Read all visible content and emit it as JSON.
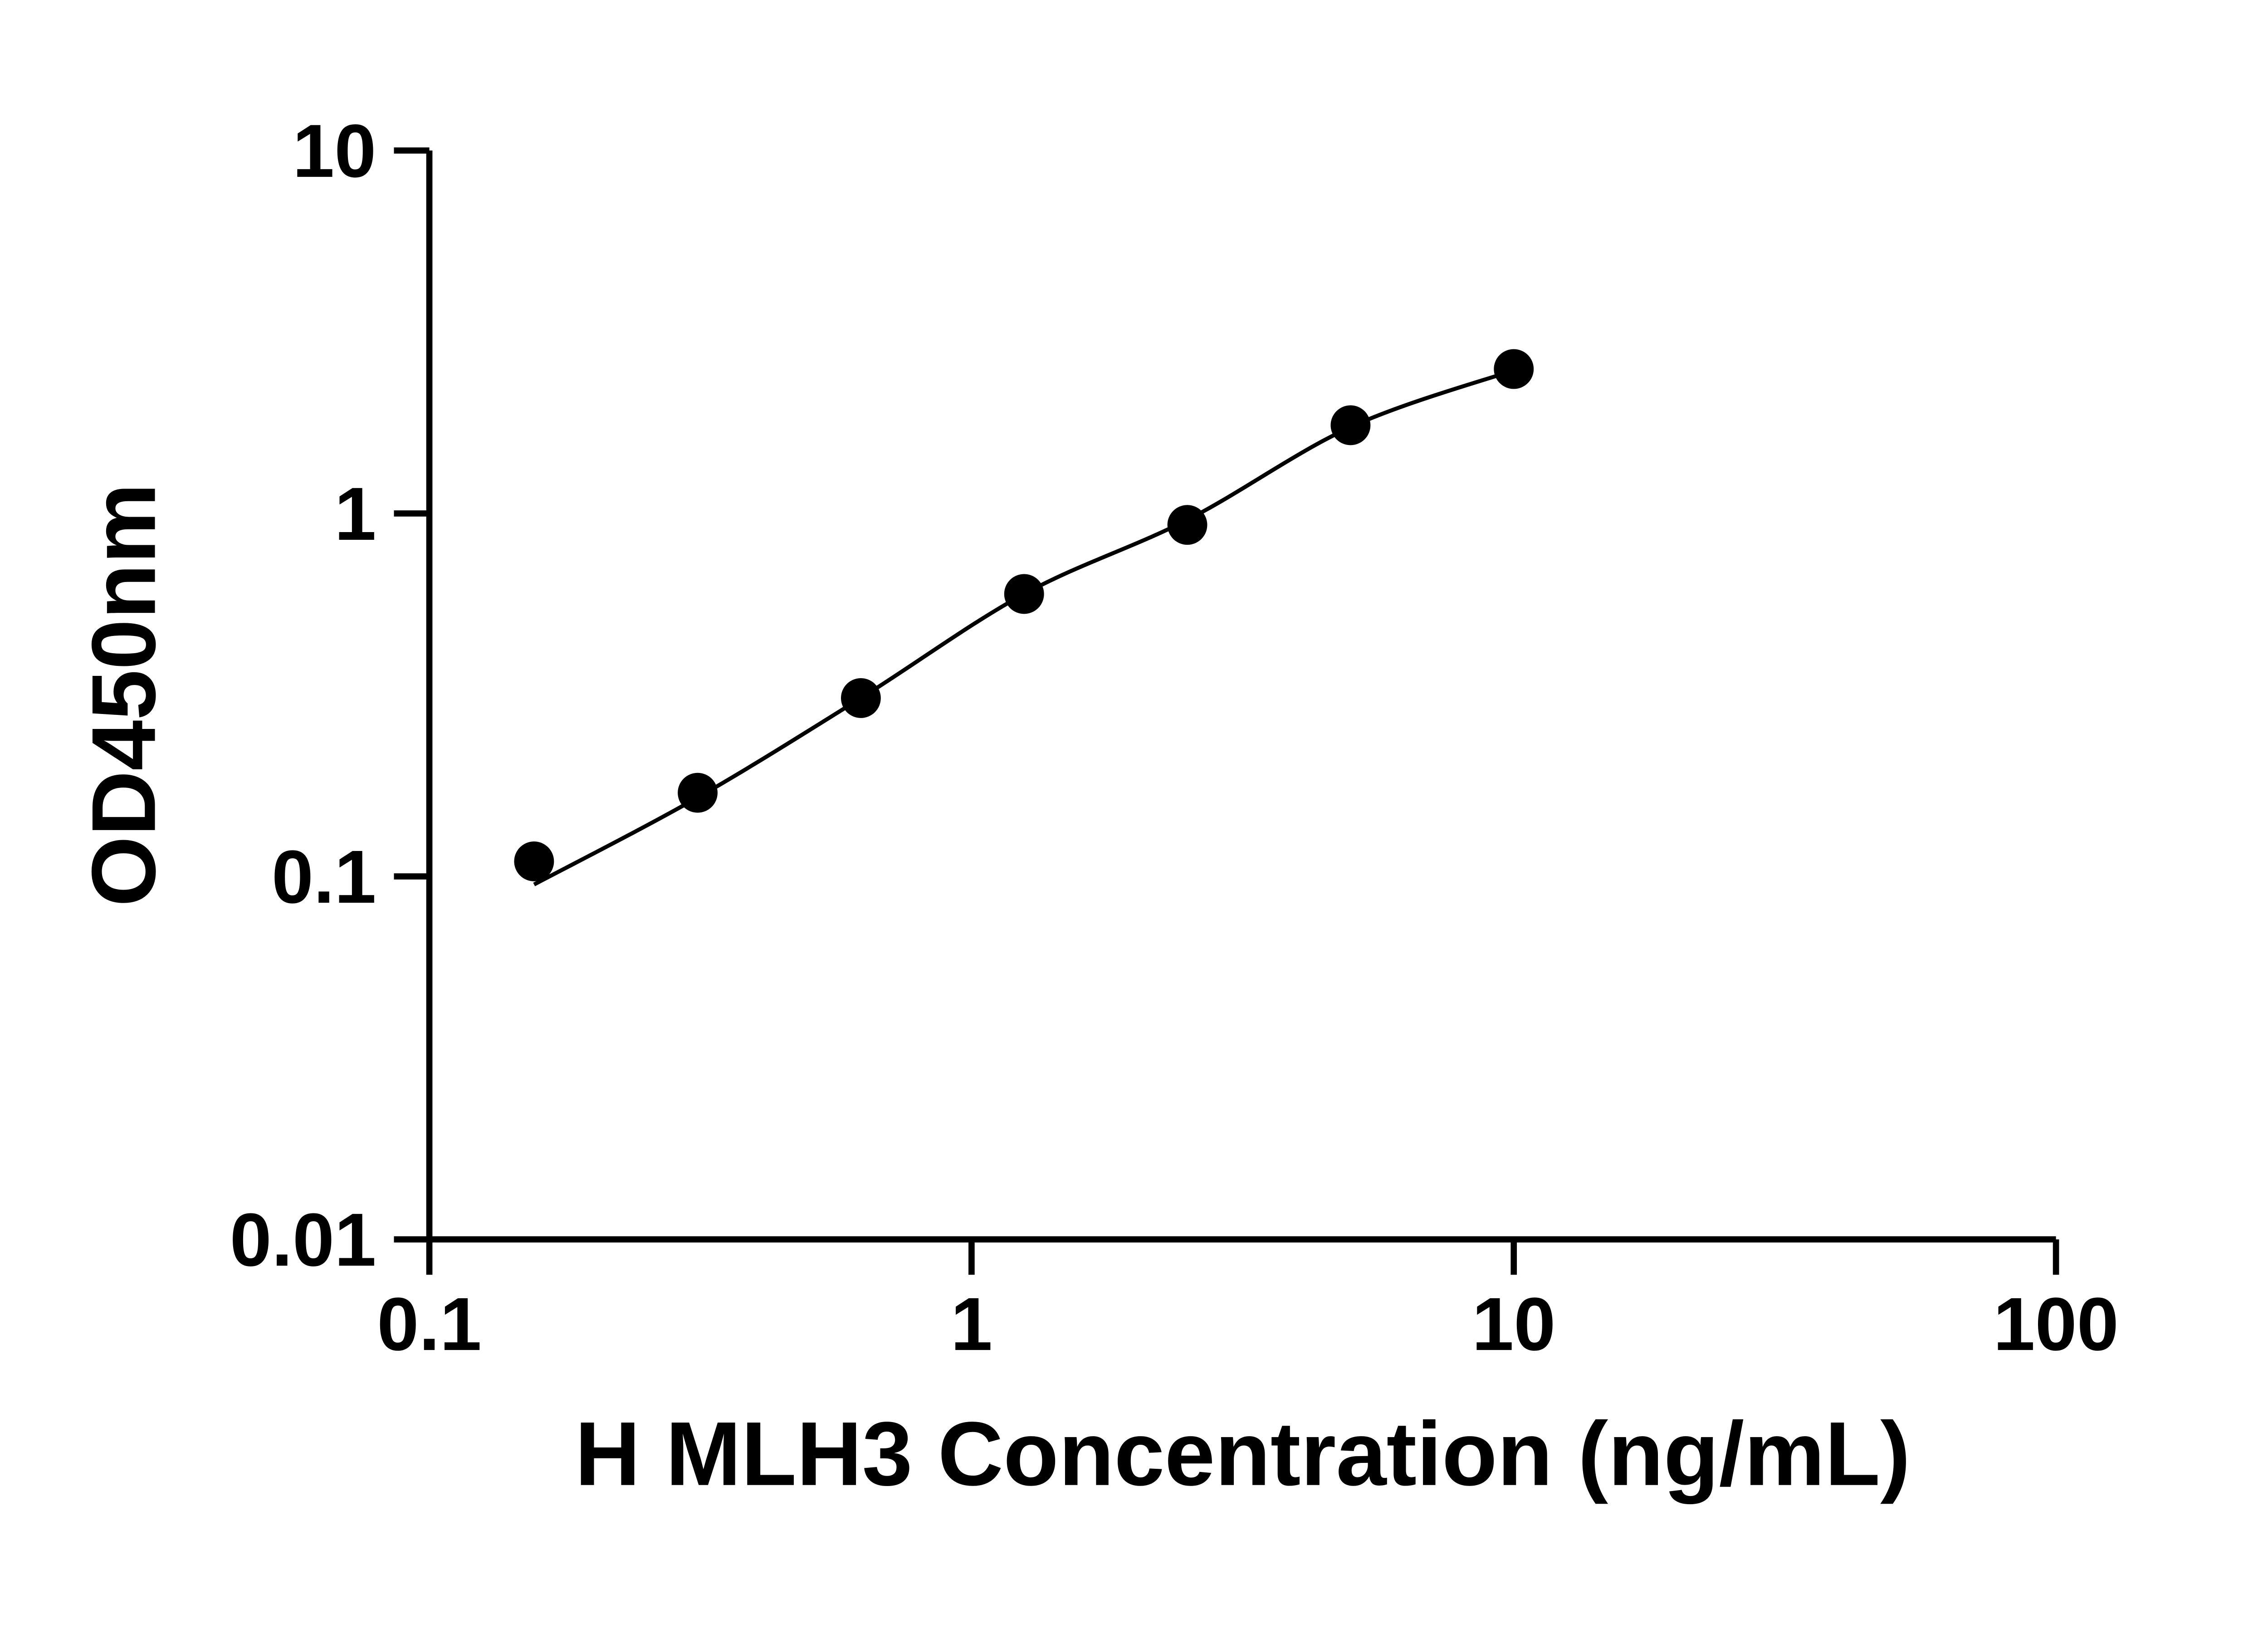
{
  "chart_data": {
    "type": "scatter",
    "title": "",
    "xlabel": "H MLH3 Concentration (ng/mL)",
    "ylabel": "OD450nm",
    "x_scale": "log",
    "y_scale": "log",
    "xlim": [
      0.1,
      100
    ],
    "ylim": [
      0.01,
      10
    ],
    "x_tick_values": [
      0.1,
      1,
      10,
      100
    ],
    "x_tick_labels": [
      "0.1",
      "1",
      "10",
      "100"
    ],
    "y_tick_values": [
      0.01,
      0.1,
      1,
      10
    ],
    "y_tick_labels": [
      "0.01",
      "0.1",
      "1",
      "10"
    ],
    "x": [
      0.156,
      0.3125,
      0.625,
      1.25,
      2.5,
      5,
      10
    ],
    "y": [
      0.11,
      0.17,
      0.31,
      0.6,
      0.93,
      1.75,
      2.5
    ],
    "fit_curve_x": [
      0.156,
      0.3125,
      0.625,
      1.25,
      2.5,
      5,
      10
    ],
    "fit_curve_y": [
      0.095,
      0.165,
      0.31,
      0.6,
      0.96,
      1.73,
      2.48
    ],
    "marker_color": "#000000",
    "line_color": "#000000",
    "axis_color": "#000000",
    "background_color": "#ffffff",
    "grid": "off",
    "legend": "none"
  }
}
